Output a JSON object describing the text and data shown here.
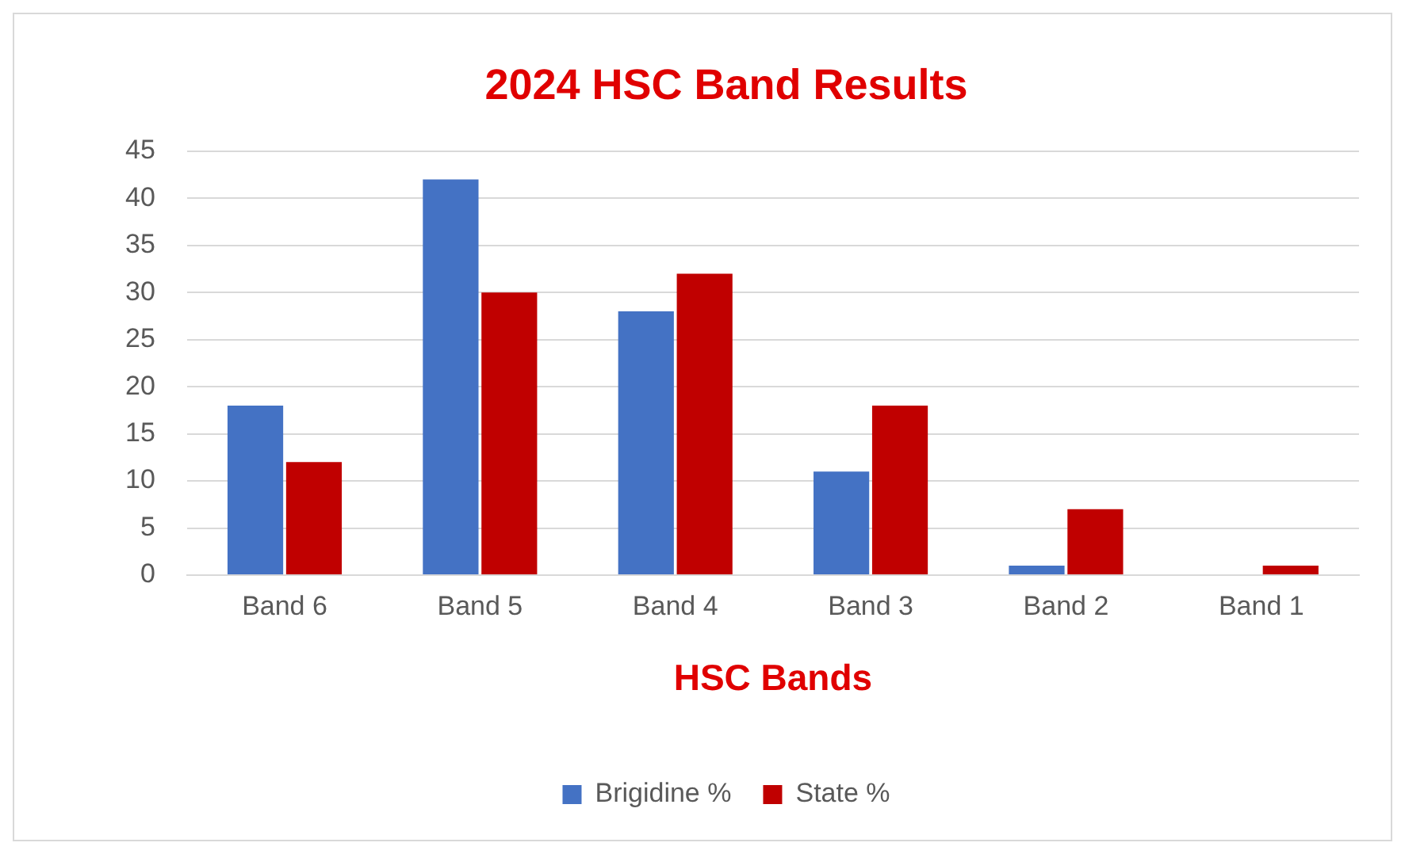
{
  "chart_data": {
    "type": "bar",
    "title": "2024 HSC Band Results",
    "xlabel": "HSC Bands",
    "categories": [
      "Band 6",
      "Band 5",
      "Band 4",
      "Band 3",
      "Band 2",
      "Band 1"
    ],
    "series": [
      {
        "name": "Brigidine %",
        "color": "#4472c4",
        "values": [
          18,
          42,
          28,
          11,
          1,
          0
        ]
      },
      {
        "name": "State %",
        "color": "#c00000",
        "values": [
          12,
          30,
          32,
          18,
          7,
          1
        ]
      }
    ],
    "ylim": [
      0,
      45
    ],
    "yticks": [
      0,
      5,
      10,
      15,
      20,
      25,
      30,
      35,
      40,
      45
    ],
    "grid": "y",
    "legend": "bottom"
  }
}
